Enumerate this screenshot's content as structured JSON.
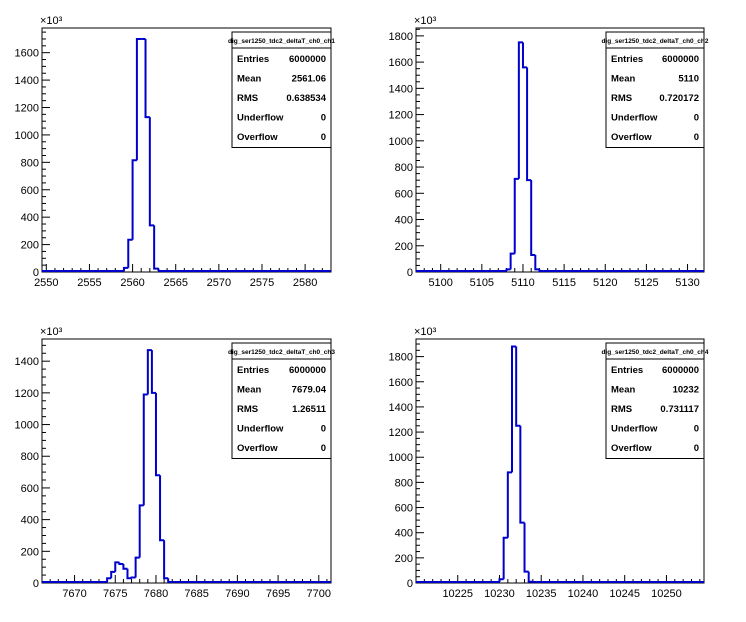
{
  "canvas": {
    "background": "#ffffff",
    "line_color": "#0000cc",
    "axis_color": "#000000"
  },
  "chart_data": [
    {
      "type": "histogram",
      "name": "dig_ser1250_tdc2_deltaT_ch0_ch1",
      "xlim": [
        2549.5,
        2583
      ],
      "ylim": [
        0,
        1780
      ],
      "xticks": [
        2550,
        2555,
        2560,
        2565,
        2570,
        2575,
        2580
      ],
      "yticks": [
        0,
        200,
        400,
        600,
        800,
        1000,
        1200,
        1400,
        1600
      ],
      "y_multiplier": "×10³",
      "bin_edges": [
        2559,
        2559.5,
        2560,
        2560.5,
        2561,
        2561.5,
        2562,
        2562.5,
        2563
      ],
      "values": [
        30,
        235,
        815,
        1700,
        1700,
        1130,
        340,
        25
      ],
      "stats": [
        {
          "label": "Entries",
          "value": "6000000"
        },
        {
          "label": "Mean",
          "value": "2561.06"
        },
        {
          "label": "RMS",
          "value": "0.638534"
        },
        {
          "label": "Underflow",
          "value": "0"
        },
        {
          "label": "Overflow",
          "value": "0"
        }
      ]
    },
    {
      "type": "histogram",
      "name": "dig_ser1250_tdc2_deltaT_ch0_ch2",
      "xlim": [
        5097,
        5132
      ],
      "ylim": [
        0,
        1860
      ],
      "xticks": [
        5100,
        5105,
        5110,
        5115,
        5120,
        5125,
        5130
      ],
      "yticks": [
        0,
        200,
        400,
        600,
        800,
        1000,
        1200,
        1400,
        1600,
        1800
      ],
      "y_multiplier": "×10³",
      "bin_edges": [
        5108,
        5108.5,
        5109,
        5109.5,
        5110,
        5110.5,
        5111,
        5111.5,
        5112,
        5112.5
      ],
      "values": [
        20,
        140,
        710,
        1750,
        1560,
        700,
        130,
        20,
        5
      ],
      "stats": [
        {
          "label": "Entries",
          "value": "6000000"
        },
        {
          "label": "Mean",
          "value": "5110"
        },
        {
          "label": "RMS",
          "value": "0.720172"
        },
        {
          "label": "Underflow",
          "value": "0"
        },
        {
          "label": "Overflow",
          "value": "0"
        }
      ]
    },
    {
      "type": "histogram",
      "name": "dig_ser1250_tdc2_deltaT_ch0_ch3",
      "xlim": [
        7666,
        7701.5
      ],
      "ylim": [
        0,
        1540
      ],
      "xticks": [
        7670,
        7675,
        7680,
        7685,
        7690,
        7695,
        7700
      ],
      "yticks": [
        0,
        200,
        400,
        600,
        800,
        1000,
        1200,
        1400
      ],
      "y_multiplier": "×10³",
      "bin_edges": [
        7673.5,
        7674,
        7674.5,
        7675,
        7675.5,
        7676,
        7676.5,
        7677,
        7677.5,
        7678,
        7678.5,
        7679,
        7679.5,
        7680,
        7680.5,
        7681,
        7681.5,
        7682
      ],
      "values": [
        5,
        30,
        70,
        130,
        120,
        90,
        30,
        35,
        160,
        490,
        1190,
        1470,
        1200,
        680,
        270,
        30,
        5
      ],
      "stats": [
        {
          "label": "Entries",
          "value": "6000000"
        },
        {
          "label": "Mean",
          "value": "7679.04"
        },
        {
          "label": "RMS",
          "value": "1.26511"
        },
        {
          "label": "Underflow",
          "value": "0"
        },
        {
          "label": "Overflow",
          "value": "0"
        }
      ]
    },
    {
      "type": "histogram",
      "name": "dig_ser1250_tdc2_deltaT_ch0_ch4",
      "xlim": [
        10220,
        10254.5
      ],
      "ylim": [
        0,
        1940
      ],
      "xticks": [
        10225,
        10230,
        10235,
        10240,
        10245,
        10250
      ],
      "yticks": [
        0,
        200,
        400,
        600,
        800,
        1000,
        1200,
        1400,
        1600,
        1800
      ],
      "y_multiplier": "×10³",
      "bin_edges": [
        10230,
        10230.5,
        10231,
        10231.5,
        10232,
        10232.5,
        10233,
        10233.5,
        10234,
        10234.5
      ],
      "values": [
        30,
        360,
        880,
        1880,
        1250,
        480,
        90,
        10,
        3
      ],
      "stats": [
        {
          "label": "Entries",
          "value": "6000000"
        },
        {
          "label": "Mean",
          "value": "10232"
        },
        {
          "label": "RMS",
          "value": "0.731117"
        },
        {
          "label": "Underflow",
          "value": "0"
        },
        {
          "label": "Overflow",
          "value": "0"
        }
      ]
    }
  ]
}
